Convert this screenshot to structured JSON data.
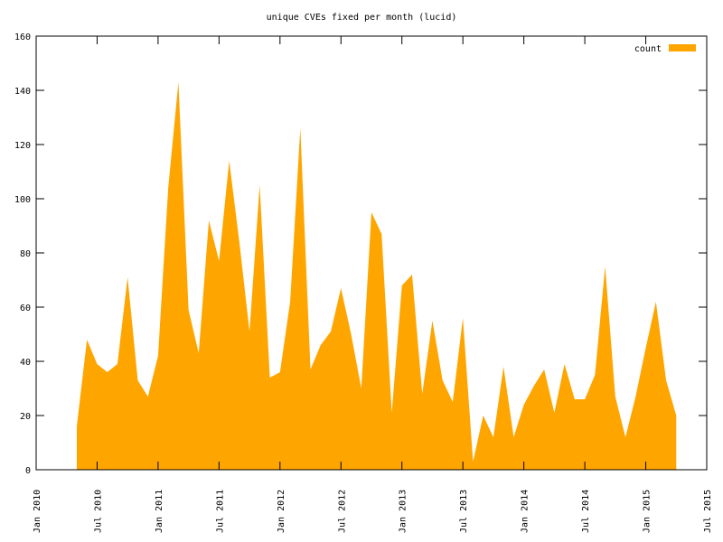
{
  "chart_data": {
    "type": "area",
    "title": "unique CVEs fixed per month (lucid)",
    "x": [
      "2010-05",
      "2010-06",
      "2010-07",
      "2010-08",
      "2010-09",
      "2010-10",
      "2010-11",
      "2010-12",
      "2011-01",
      "2011-02",
      "2011-03",
      "2011-04",
      "2011-05",
      "2011-06",
      "2011-07",
      "2011-08",
      "2011-09",
      "2011-10",
      "2011-11",
      "2011-12",
      "2012-01",
      "2012-02",
      "2012-03",
      "2012-04",
      "2012-05",
      "2012-06",
      "2012-07",
      "2012-08",
      "2012-09",
      "2012-10",
      "2012-11",
      "2012-12",
      "2013-01",
      "2013-02",
      "2013-03",
      "2013-04",
      "2013-05",
      "2013-06",
      "2013-07",
      "2013-08",
      "2013-09",
      "2013-10",
      "2013-11",
      "2013-12",
      "2014-01",
      "2014-02",
      "2014-03",
      "2014-04",
      "2014-05",
      "2014-06",
      "2014-07",
      "2014-08",
      "2014-09",
      "2014-10",
      "2014-11",
      "2014-12",
      "2015-01",
      "2015-02",
      "2015-03",
      "2015-04"
    ],
    "series": [
      {
        "name": "count",
        "color": "#ffa500",
        "values": [
          16,
          48,
          39,
          36,
          39,
          71,
          33,
          27,
          42,
          104,
          143,
          59,
          43,
          92,
          77,
          114,
          84,
          51,
          105,
          34,
          36,
          62,
          126,
          37,
          46,
          51,
          67,
          50,
          30,
          95,
          87,
          21,
          68,
          72,
          28,
          55,
          33,
          25,
          56,
          3,
          20,
          12,
          38,
          12,
          24,
          31,
          37,
          21,
          39,
          26,
          26,
          35,
          75,
          27,
          12,
          27,
          45,
          62,
          33,
          20
        ]
      }
    ],
    "xlim": [
      "2010-01",
      "2015-07"
    ],
    "xticks": [
      {
        "value": "2010-01",
        "label": "Jan 2010"
      },
      {
        "value": "2010-07",
        "label": "Jul 2010"
      },
      {
        "value": "2011-01",
        "label": "Jan 2011"
      },
      {
        "value": "2011-07",
        "label": "Jul 2011"
      },
      {
        "value": "2012-01",
        "label": "Jan 2012"
      },
      {
        "value": "2012-07",
        "label": "Jul 2012"
      },
      {
        "value": "2013-01",
        "label": "Jan 2013"
      },
      {
        "value": "2013-07",
        "label": "Jul 2013"
      },
      {
        "value": "2014-01",
        "label": "Jan 2014"
      },
      {
        "value": "2014-07",
        "label": "Jul 2014"
      },
      {
        "value": "2015-01",
        "label": "Jan 2015"
      },
      {
        "value": "2015-07",
        "label": "Jul 2015"
      }
    ],
    "ylim": [
      0,
      160
    ],
    "yticks": [
      0,
      20,
      40,
      60,
      80,
      100,
      120,
      140,
      160
    ],
    "legend": "top right"
  }
}
